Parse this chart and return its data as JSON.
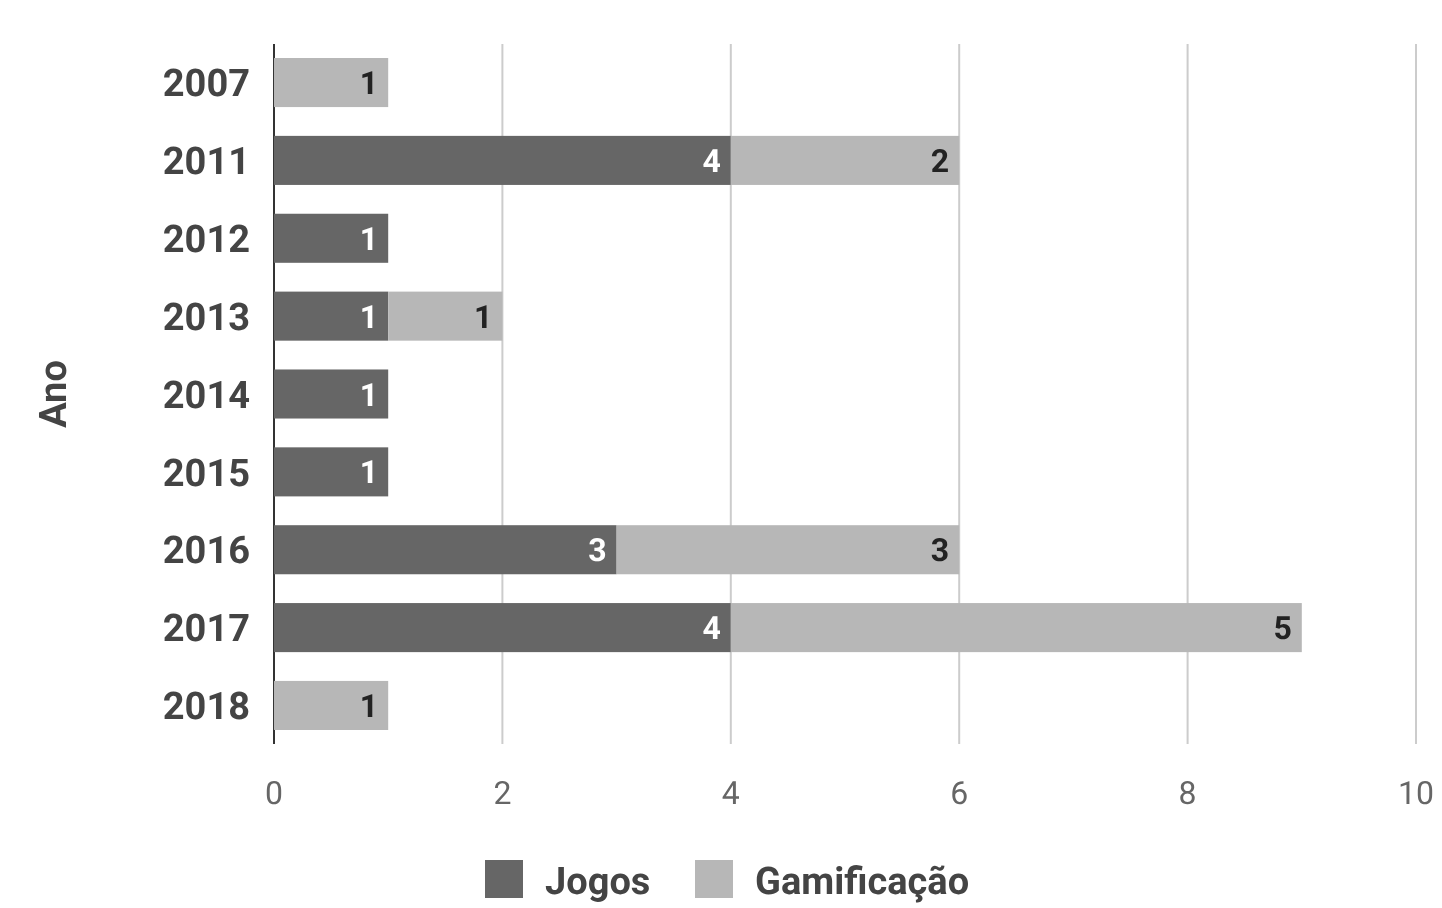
{
  "chart_data": {
    "type": "bar",
    "orientation": "horizontal",
    "stacked": true,
    "ylabel": "Ano",
    "categories": [
      "2007",
      "2011",
      "2012",
      "2013",
      "2014",
      "2015",
      "2016",
      "2017",
      "2018"
    ],
    "series": [
      {
        "name": "Jogos",
        "color": "#666666",
        "values": [
          null,
          4,
          1,
          1,
          1,
          1,
          3,
          4,
          null
        ]
      },
      {
        "name": "Gamificação",
        "color": "#b7b7b7",
        "values": [
          1,
          2,
          null,
          1,
          null,
          null,
          3,
          5,
          1
        ]
      }
    ],
    "xlim": [
      0,
      10
    ],
    "xticks": [
      0,
      2,
      4,
      6,
      8,
      10
    ],
    "grid": "x",
    "legend": "bottom",
    "data_labels": true
  }
}
